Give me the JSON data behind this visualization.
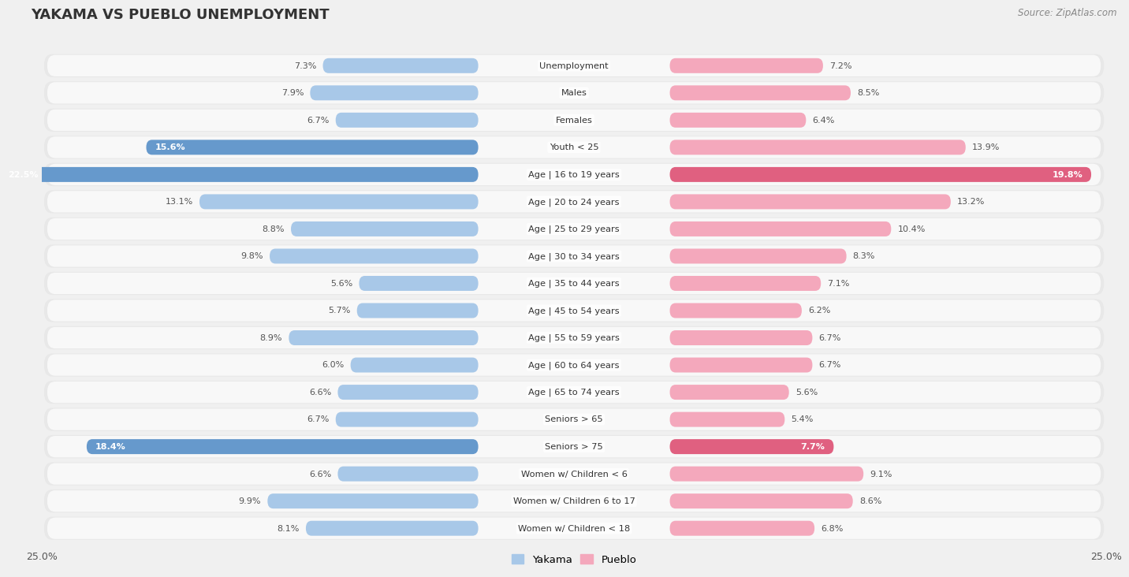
{
  "title": "YAKAMA VS PUEBLO UNEMPLOYMENT",
  "source": "Source: ZipAtlas.com",
  "categories": [
    "Unemployment",
    "Males",
    "Females",
    "Youth < 25",
    "Age | 16 to 19 years",
    "Age | 20 to 24 years",
    "Age | 25 to 29 years",
    "Age | 30 to 34 years",
    "Age | 35 to 44 years",
    "Age | 45 to 54 years",
    "Age | 55 to 59 years",
    "Age | 60 to 64 years",
    "Age | 65 to 74 years",
    "Seniors > 65",
    "Seniors > 75",
    "Women w/ Children < 6",
    "Women w/ Children 6 to 17",
    "Women w/ Children < 18"
  ],
  "yakama": [
    7.3,
    7.9,
    6.7,
    15.6,
    22.5,
    13.1,
    8.8,
    9.8,
    5.6,
    5.7,
    8.9,
    6.0,
    6.6,
    6.7,
    18.4,
    6.6,
    9.9,
    8.1
  ],
  "pueblo": [
    7.2,
    8.5,
    6.4,
    13.9,
    19.8,
    13.2,
    10.4,
    8.3,
    7.1,
    6.2,
    6.7,
    6.7,
    5.6,
    5.4,
    7.7,
    9.1,
    8.6,
    6.8
  ],
  "yakama_color_default": "#a8c8e8",
  "yakama_color_highlight": "#6699cc",
  "pueblo_color_default": "#f4a8bc",
  "pueblo_color_highlight": "#e06080",
  "highlight_yakama": [
    3,
    4,
    14
  ],
  "highlight_pueblo": [
    4,
    14
  ],
  "axis_limit": 25.0,
  "bg_color": "#f0f0f0",
  "row_bg_color": "#e8e8e8",
  "row_inner_color": "#f8f8f8"
}
